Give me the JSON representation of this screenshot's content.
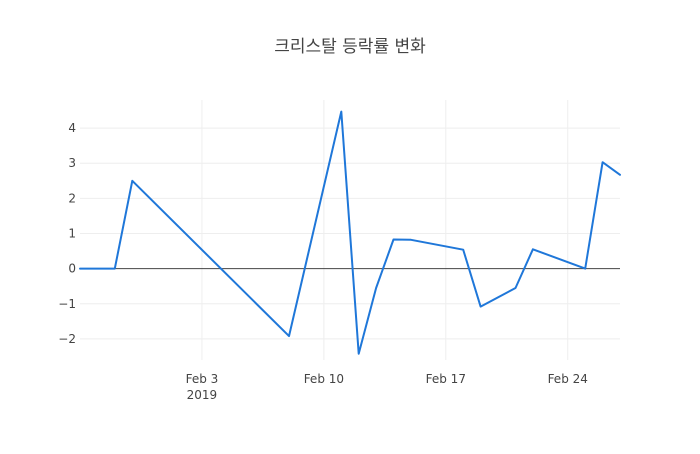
{
  "chart_data": {
    "type": "line",
    "title": "크리스탈 등락률 변화",
    "xlabel": "",
    "ylabel": "",
    "x_range": [
      "2019-01-27",
      "2019-02-27"
    ],
    "y_range": [
      -2.6,
      4.8
    ],
    "y_ticks": [
      4,
      3,
      2,
      1,
      0,
      -1,
      -2
    ],
    "y_tick_labels": [
      "4",
      "3",
      "2",
      "1",
      "0",
      "−1",
      "−2"
    ],
    "x_ticks": [
      {
        "date": "2019-02-03",
        "label": "Feb 3",
        "sublabel": "2019"
      },
      {
        "date": "2019-02-10",
        "label": "Feb 10",
        "sublabel": ""
      },
      {
        "date": "2019-02-17",
        "label": "Feb 17",
        "sublabel": ""
      },
      {
        "date": "2019-02-24",
        "label": "Feb 24",
        "sublabel": ""
      }
    ],
    "grid": true,
    "zero_line": true,
    "series": [
      {
        "color": "#1f77d9",
        "points": [
          {
            "x": "2019-01-27",
            "y": 0
          },
          {
            "x": "2019-01-29",
            "y": 0
          },
          {
            "x": "2019-01-30",
            "y": 2.5
          },
          {
            "x": "2019-02-08",
            "y": -1.92
          },
          {
            "x": "2019-02-11",
            "y": 4.47
          },
          {
            "x": "2019-02-12",
            "y": -2.42
          },
          {
            "x": "2019-02-13",
            "y": -0.55
          },
          {
            "x": "2019-02-14",
            "y": 0.83
          },
          {
            "x": "2019-02-15",
            "y": 0.82
          },
          {
            "x": "2019-02-18",
            "y": 0.54
          },
          {
            "x": "2019-02-19",
            "y": -1.08
          },
          {
            "x": "2019-02-21",
            "y": -0.55
          },
          {
            "x": "2019-02-22",
            "y": 0.55
          },
          {
            "x": "2019-02-25",
            "y": 0
          },
          {
            "x": "2019-02-26",
            "y": 3.03
          },
          {
            "x": "2019-02-27",
            "y": 2.67
          }
        ]
      }
    ]
  }
}
